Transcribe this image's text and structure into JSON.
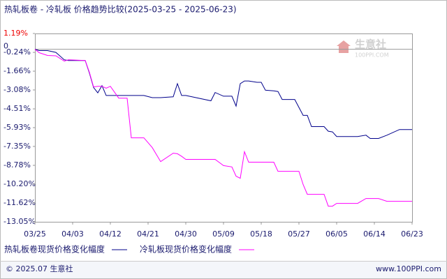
{
  "chart_data": {
    "type": "line",
    "title": "热轧板卷 - 冷轧板 价格趋势比较(2025-03-25 - 2025-06-23)",
    "x": [
      "03/25",
      "03/26",
      "03/28",
      "03/30",
      "04/01",
      "04/02",
      "04/06",
      "04/07",
      "04/08",
      "04/09",
      "04/10",
      "04/11",
      "04/12",
      "04/14",
      "04/16",
      "04/17",
      "04/20",
      "04/22",
      "04/24",
      "04/27",
      "04/28",
      "04/29",
      "04/30",
      "05/06",
      "05/07",
      "05/09",
      "05/11",
      "05/12",
      "05/13",
      "05/14",
      "05/15",
      "05/17",
      "05/18",
      "05/19",
      "05/21",
      "05/22",
      "05/23",
      "05/26",
      "05/27",
      "05/28",
      "05/29",
      "05/30",
      "06/02",
      "06/03",
      "06/04",
      "06/05",
      "06/06",
      "06/10",
      "06/12",
      "06/13",
      "06/15",
      "06/17",
      "06/20",
      "06/23"
    ],
    "series": [
      {
        "name": "热轧板卷现货价格变化幅度",
        "color": "#00008b",
        "values": [
          0,
          -0.1,
          -0.1,
          -0.24,
          -0.8,
          -0.85,
          -0.85,
          -1.8,
          -2.9,
          -3.3,
          -2.75,
          -3.5,
          -3.5,
          -3.5,
          -3.5,
          -3.5,
          -3.5,
          -3.66,
          -3.66,
          -3.6,
          -2.6,
          -3.5,
          -3.5,
          -3.9,
          -3.27,
          -3.55,
          -3.55,
          -4.3,
          -2.6,
          -2.4,
          -2.4,
          -2.5,
          -2.5,
          -3.1,
          -3.15,
          -3.2,
          -3.8,
          -3.8,
          -4.4,
          -5.0,
          -5.0,
          -5.85,
          -5.85,
          -6.2,
          -6.25,
          -6.6,
          -6.6,
          -6.6,
          -6.5,
          -6.75,
          -6.75,
          -6.5,
          -6.07,
          -6.07
        ]
      },
      {
        "name": "冷轧板现货价格变化幅度",
        "color": "#ff00ff",
        "values": [
          0,
          -0.26,
          -0.47,
          -0.5,
          -0.9,
          -0.8,
          -0.85,
          -1.74,
          -2.85,
          -2.8,
          -2.8,
          -2.95,
          -2.8,
          -3.7,
          -3.7,
          -6.7,
          -6.7,
          -7.44,
          -8.5,
          -7.86,
          -7.9,
          -8.1,
          -8.33,
          -8.33,
          -8.33,
          -8.8,
          -8.9,
          -9.6,
          -9.76,
          -7.75,
          -8.54,
          -8.54,
          -8.54,
          -8.54,
          -8.54,
          -9.23,
          -9.23,
          -9.23,
          -9.23,
          -10.23,
          -10.97,
          -10.97,
          -10.97,
          -11.87,
          -11.87,
          -11.66,
          -11.66,
          -11.66,
          -11.29,
          -11.29,
          -11.29,
          -11.5,
          -11.5,
          -11.5
        ]
      }
    ],
    "xlim": [
      "03/25",
      "06/23"
    ],
    "xticks": [
      "03/25",
      "04/03",
      "04/12",
      "04/21",
      "04/30",
      "05/09",
      "05/18",
      "05/27",
      "06/05",
      "06/14",
      "06/23"
    ],
    "ylim": [
      -13.05,
      1.19
    ],
    "yticks": [
      {
        "value": 1.19,
        "label": "1.19%"
      },
      0,
      {
        "value": -0.24,
        "label": "-0.24%"
      },
      {
        "value": -1.66,
        "label": "-1.66%"
      },
      {
        "value": -3.08,
        "label": "-3.08%"
      },
      {
        "value": -4.51,
        "label": "-4.51%"
      },
      {
        "value": -5.93,
        "label": "-5.93%"
      },
      {
        "value": -7.35,
        "label": "-7.35%"
      },
      {
        "value": -8.78,
        "label": "-8.78%"
      },
      {
        "value": -10.2,
        "label": "-10.20%"
      },
      {
        "value": -11.62,
        "label": "-11.62%"
      },
      {
        "value": -13.05,
        "label": "-13.05%"
      }
    ],
    "watermark": {
      "brand": "生意社",
      "site": "100PPI.COM"
    },
    "footer": {
      "copyright": "© 2025.07 生意社",
      "site": "www.100PPI.com"
    }
  }
}
